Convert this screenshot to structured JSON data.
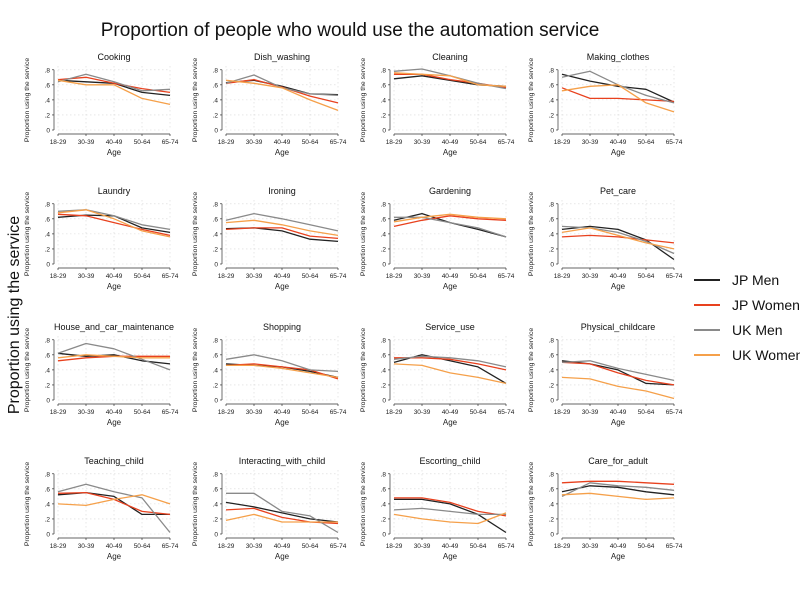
{
  "title": "Proportion of people who would use the automation service",
  "y_outer_label": "Proportion using the service",
  "legend": {
    "entries": [
      {
        "name": "JP Men",
        "color": "#222222"
      },
      {
        "name": "JP Women",
        "color": "#e8411e"
      },
      {
        "name": "UK Men",
        "color": "#8a8a8a"
      },
      {
        "name": "UK Women",
        "color": "#f5a04a"
      }
    ]
  },
  "chart_data": {
    "type": "line",
    "title": "Proportion of people who would use the automation service",
    "xlabel": "Age",
    "ylabel": "Proportion using the service",
    "categories": [
      "18-29",
      "30-39",
      "40-49",
      "50-64",
      "65-74"
    ],
    "ylim": [
      0,
      0.85
    ],
    "yticks": [
      0,
      0.2,
      0.4,
      0.6,
      0.8
    ],
    "ytick_labels": [
      "0",
      ".2",
      ".4",
      ".6",
      ".8"
    ],
    "grid": true,
    "legend_position": "right",
    "series_names": [
      "JP Men",
      "JP Women",
      "UK Men",
      "UK Women"
    ],
    "panels": [
      {
        "title": "Cooking",
        "series": [
          [
            0.66,
            0.64,
            0.62,
            0.5,
            0.46
          ],
          [
            0.67,
            0.7,
            0.62,
            0.55,
            0.5
          ],
          [
            0.64,
            0.74,
            0.64,
            0.52,
            0.54
          ],
          [
            0.66,
            0.6,
            0.6,
            0.42,
            0.34
          ]
        ]
      },
      {
        "title": "Dish_washing",
        "series": [
          [
            0.63,
            0.66,
            0.58,
            0.48,
            0.47
          ],
          [
            0.62,
            0.67,
            0.57,
            0.45,
            0.36
          ],
          [
            0.62,
            0.73,
            0.56,
            0.48,
            0.46
          ],
          [
            0.66,
            0.62,
            0.56,
            0.4,
            0.26
          ]
        ]
      },
      {
        "title": "Cleaning",
        "series": [
          [
            0.68,
            0.72,
            0.66,
            0.6,
            0.58
          ],
          [
            0.74,
            0.74,
            0.67,
            0.62,
            0.56
          ],
          [
            0.78,
            0.81,
            0.72,
            0.62,
            0.55
          ],
          [
            0.76,
            0.74,
            0.72,
            0.6,
            0.58
          ]
        ]
      },
      {
        "title": "Making_clothes",
        "series": [
          [
            0.74,
            0.65,
            0.58,
            0.54,
            0.37
          ],
          [
            0.56,
            0.42,
            0.42,
            0.4,
            0.38
          ],
          [
            0.7,
            0.78,
            0.6,
            0.46,
            0.36
          ],
          [
            0.52,
            0.58,
            0.6,
            0.36,
            0.24
          ]
        ]
      },
      {
        "title": "Laundry",
        "series": [
          [
            0.62,
            0.65,
            0.64,
            0.48,
            0.42
          ],
          [
            0.66,
            0.64,
            0.55,
            0.46,
            0.38
          ],
          [
            0.7,
            0.72,
            0.64,
            0.52,
            0.46
          ],
          [
            0.68,
            0.72,
            0.6,
            0.44,
            0.36
          ]
        ]
      },
      {
        "title": "Ironing",
        "series": [
          [
            0.47,
            0.48,
            0.44,
            0.33,
            0.3
          ],
          [
            0.46,
            0.48,
            0.48,
            0.37,
            0.34
          ],
          [
            0.58,
            0.67,
            0.6,
            0.52,
            0.44
          ],
          [
            0.55,
            0.58,
            0.52,
            0.44,
            0.38
          ]
        ]
      },
      {
        "title": "Gardening",
        "series": [
          [
            0.58,
            0.67,
            0.55,
            0.46,
            0.36
          ],
          [
            0.5,
            0.58,
            0.64,
            0.6,
            0.58
          ],
          [
            0.62,
            0.62,
            0.55,
            0.48,
            0.36
          ],
          [
            0.56,
            0.62,
            0.66,
            0.62,
            0.6
          ]
        ]
      },
      {
        "title": "Pet_care",
        "series": [
          [
            0.46,
            0.5,
            0.46,
            0.32,
            0.06
          ],
          [
            0.36,
            0.38,
            0.36,
            0.32,
            0.28
          ],
          [
            0.5,
            0.48,
            0.42,
            0.3,
            0.14
          ],
          [
            0.42,
            0.48,
            0.38,
            0.28,
            0.2
          ]
        ]
      },
      {
        "title": "House_and_car_maintenance",
        "series": [
          [
            0.62,
            0.58,
            0.6,
            0.52,
            0.48
          ],
          [
            0.52,
            0.56,
            0.58,
            0.58,
            0.58
          ],
          [
            0.62,
            0.75,
            0.68,
            0.54,
            0.4
          ],
          [
            0.56,
            0.6,
            0.58,
            0.56,
            0.56
          ]
        ]
      },
      {
        "title": "Shopping",
        "series": [
          [
            0.48,
            0.46,
            0.44,
            0.38,
            0.3
          ],
          [
            0.46,
            0.48,
            0.44,
            0.4,
            0.28
          ],
          [
            0.54,
            0.6,
            0.52,
            0.4,
            0.38
          ],
          [
            0.46,
            0.46,
            0.42,
            0.36,
            0.3
          ]
        ]
      },
      {
        "title": "Service_use",
        "series": [
          [
            0.5,
            0.6,
            0.52,
            0.44,
            0.22
          ],
          [
            0.56,
            0.56,
            0.54,
            0.48,
            0.4
          ],
          [
            0.54,
            0.58,
            0.56,
            0.52,
            0.44
          ],
          [
            0.48,
            0.46,
            0.36,
            0.3,
            0.22
          ]
        ]
      },
      {
        "title": "Physical_childcare",
        "series": [
          [
            0.52,
            0.48,
            0.4,
            0.22,
            0.2
          ],
          [
            0.5,
            0.48,
            0.36,
            0.26,
            0.2
          ],
          [
            0.5,
            0.52,
            0.42,
            0.34,
            0.26
          ],
          [
            0.3,
            0.28,
            0.18,
            0.12,
            0.02
          ]
        ]
      },
      {
        "title": "Teaching_child",
        "series": [
          [
            0.52,
            0.55,
            0.5,
            0.26,
            0.26
          ],
          [
            0.54,
            0.55,
            0.46,
            0.3,
            0.26
          ],
          [
            0.56,
            0.66,
            0.56,
            0.48,
            0.02
          ],
          [
            0.4,
            0.38,
            0.46,
            0.52,
            0.4
          ]
        ]
      },
      {
        "title": "Interacting_with_child",
        "series": [
          [
            0.42,
            0.36,
            0.28,
            0.2,
            0.16
          ],
          [
            0.32,
            0.34,
            0.22,
            0.16,
            0.14
          ],
          [
            0.54,
            0.54,
            0.3,
            0.24,
            0.02
          ],
          [
            0.18,
            0.26,
            0.16,
            0.16,
            0.16
          ]
        ]
      },
      {
        "title": "Escorting_child",
        "series": [
          [
            0.46,
            0.46,
            0.4,
            0.26,
            0.02
          ],
          [
            0.48,
            0.48,
            0.42,
            0.3,
            0.24
          ],
          [
            0.32,
            0.34,
            0.3,
            0.26,
            0.26
          ],
          [
            0.26,
            0.2,
            0.16,
            0.14,
            0.28
          ]
        ]
      },
      {
        "title": "Care_for_adult",
        "series": [
          [
            0.56,
            0.64,
            0.62,
            0.56,
            0.52
          ],
          [
            0.68,
            0.7,
            0.7,
            0.68,
            0.66
          ],
          [
            0.5,
            0.68,
            0.64,
            0.62,
            0.58
          ],
          [
            0.52,
            0.54,
            0.5,
            0.46,
            0.48
          ]
        ]
      }
    ]
  }
}
